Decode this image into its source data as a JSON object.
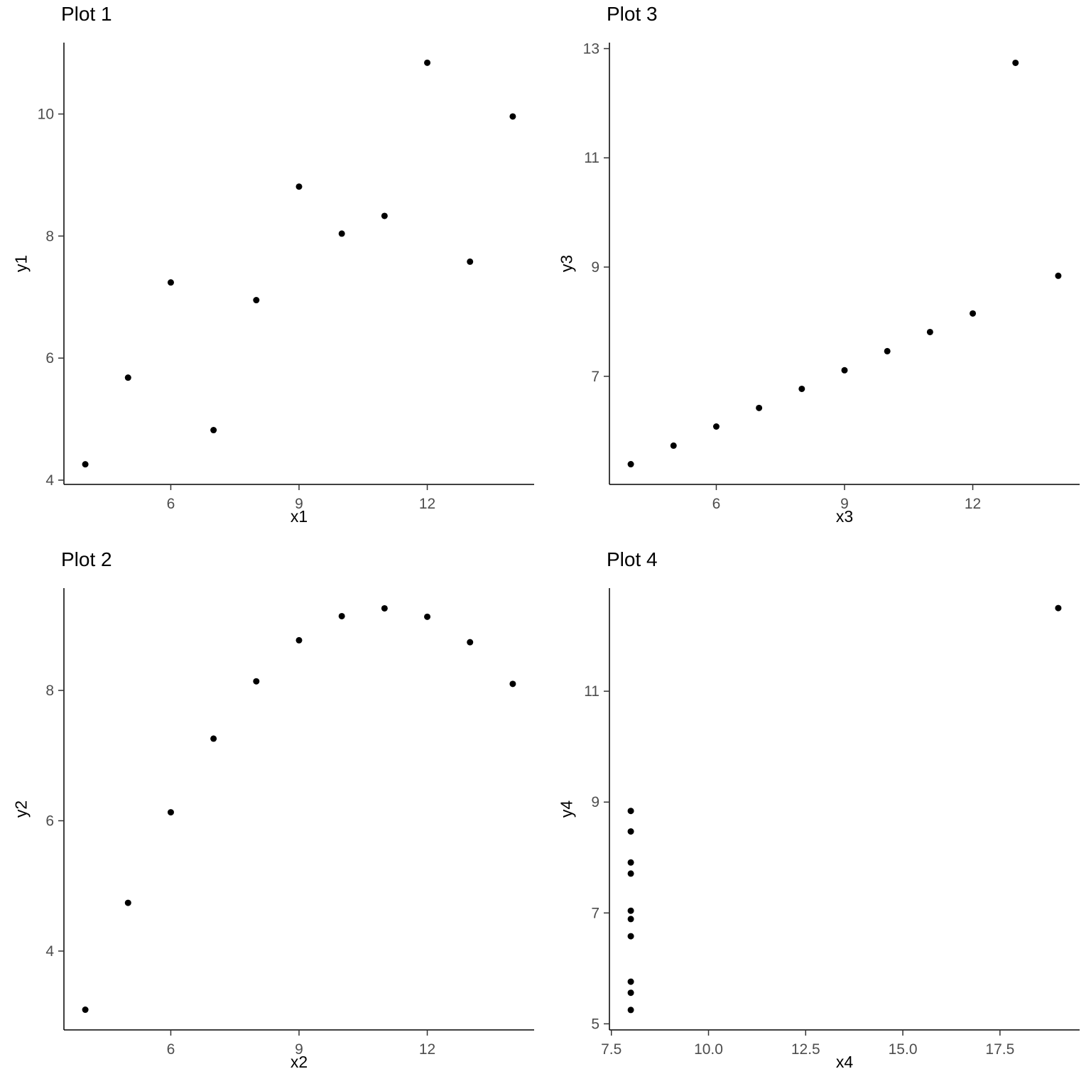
{
  "colors": {
    "point": "#000000",
    "axis_line": "#000000",
    "tick_mark": "#333333",
    "tick_label": "#4d4d4d",
    "title": "#000000",
    "background": "#ffffff"
  },
  "chart_data": [
    {
      "type": "scatter",
      "position": "top-left",
      "title": "Plot 1",
      "xlabel": "x1",
      "ylabel": "y1",
      "x": [
        10,
        8,
        13,
        9,
        11,
        14,
        6,
        4,
        12,
        7,
        5
      ],
      "y": [
        8.04,
        6.95,
        7.58,
        8.81,
        8.33,
        9.96,
        7.24,
        4.26,
        10.84,
        4.82,
        5.68
      ],
      "xlim": [
        3.5,
        14.5
      ],
      "ylim": [
        3.93,
        11.17
      ],
      "xticks": [
        6,
        9,
        12
      ],
      "xtick_labels": [
        "6",
        "9",
        "12"
      ],
      "yticks": [
        4,
        6,
        8,
        10
      ],
      "ytick_labels": [
        "4",
        "6",
        "8",
        "10"
      ],
      "grid": false,
      "legend": "none"
    },
    {
      "type": "scatter",
      "position": "top-right",
      "title": "Plot 3",
      "xlabel": "x3",
      "ylabel": "y3",
      "x": [
        10,
        8,
        13,
        9,
        11,
        14,
        6,
        4,
        12,
        7,
        5
      ],
      "y": [
        7.46,
        6.77,
        12.74,
        7.11,
        7.81,
        8.84,
        6.08,
        5.39,
        8.15,
        6.42,
        5.73
      ],
      "xlim": [
        3.5,
        14.5
      ],
      "ylim": [
        5.02,
        13.11
      ],
      "xticks": [
        6,
        9,
        12
      ],
      "xtick_labels": [
        "6",
        "9",
        "12"
      ],
      "yticks": [
        7,
        9,
        11,
        13
      ],
      "ytick_labels": [
        "7",
        "9",
        "11",
        "13"
      ],
      "grid": false,
      "legend": "none"
    },
    {
      "type": "scatter",
      "position": "bottom-left",
      "title": "Plot 2",
      "xlabel": "x2",
      "ylabel": "y2",
      "x": [
        10,
        8,
        13,
        9,
        11,
        14,
        6,
        4,
        12,
        7,
        5
      ],
      "y": [
        9.14,
        8.14,
        8.74,
        8.77,
        9.26,
        8.1,
        6.13,
        3.1,
        9.13,
        7.26,
        4.74
      ],
      "xlim": [
        3.5,
        14.5
      ],
      "ylim": [
        2.79,
        9.57
      ],
      "xticks": [
        6,
        9,
        12
      ],
      "xtick_labels": [
        "6",
        "9",
        "12"
      ],
      "yticks": [
        4,
        6,
        8
      ],
      "ytick_labels": [
        "4",
        "6",
        "8"
      ],
      "grid": false,
      "legend": "none"
    },
    {
      "type": "scatter",
      "position": "bottom-right",
      "title": "Plot 4",
      "xlabel": "x4",
      "ylabel": "y4",
      "x": [
        8,
        8,
        8,
        8,
        8,
        8,
        8,
        19,
        8,
        8,
        8
      ],
      "y": [
        6.58,
        5.76,
        7.71,
        8.84,
        8.47,
        7.04,
        5.25,
        12.5,
        5.56,
        7.91,
        6.89
      ],
      "xlim": [
        7.45,
        19.55
      ],
      "ylim": [
        4.89,
        12.86
      ],
      "xticks": [
        7.5,
        10.0,
        12.5,
        15.0,
        17.5
      ],
      "xtick_labels": [
        "7.5",
        "10.0",
        "12.5",
        "15.0",
        "17.5"
      ],
      "yticks": [
        5,
        7,
        9,
        11
      ],
      "ytick_labels": [
        "5",
        "7",
        "9",
        "11"
      ],
      "grid": false,
      "legend": "none"
    }
  ]
}
